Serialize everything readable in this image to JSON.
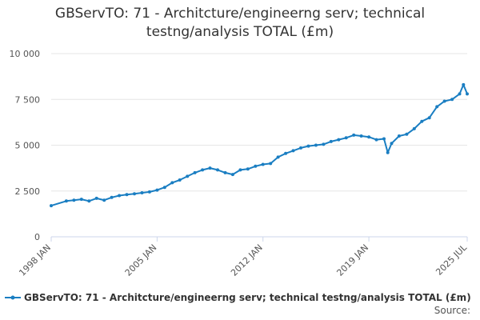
{
  "chart_data": {
    "type": "line",
    "title_line1": "GBServTO: 71 - Architcture/engineerng serv; technical",
    "title_line2": "testng/analysis TOTAL (£m)",
    "xlabel": "",
    "ylabel": "",
    "x_range": [
      "1998-01",
      "2025-07"
    ],
    "ylim": [
      0,
      10000
    ],
    "y_ticks": [
      0,
      2500,
      5000,
      7500,
      10000
    ],
    "y_tick_labels": [
      "0",
      "2 500",
      "5 000",
      "7 500",
      "10 000"
    ],
    "x_ticks": [
      "1998-01",
      "2005-01",
      "2012-01",
      "2019-01",
      "2025-07"
    ],
    "x_tick_labels": [
      "1998 JAN",
      "2005 JAN",
      "2012 JAN",
      "2019 JAN",
      "2025 JUL"
    ],
    "grid": "horizontal",
    "legend_position": "bottom",
    "color": "#1a7ec2",
    "series": [
      {
        "name": "GBServTO: 71 - Architcture/engineerng serv; technical testng/analysis TOTAL (£m)",
        "x": [
          "1998-01",
          "1999-01",
          "1999-07",
          "2000-01",
          "2000-07",
          "2001-01",
          "2001-07",
          "2002-01",
          "2002-07",
          "2003-01",
          "2003-07",
          "2004-01",
          "2004-07",
          "2005-01",
          "2005-07",
          "2006-01",
          "2006-07",
          "2007-01",
          "2007-07",
          "2008-01",
          "2008-07",
          "2009-01",
          "2009-07",
          "2010-01",
          "2010-07",
          "2011-01",
          "2011-07",
          "2012-01",
          "2012-07",
          "2013-01",
          "2013-07",
          "2014-01",
          "2014-07",
          "2015-01",
          "2015-07",
          "2016-01",
          "2016-07",
          "2017-01",
          "2017-07",
          "2018-01",
          "2018-07",
          "2019-01",
          "2019-07",
          "2020-01",
          "2020-04",
          "2020-07",
          "2021-01",
          "2021-07",
          "2022-01",
          "2022-07",
          "2023-01",
          "2023-07",
          "2024-01",
          "2024-07",
          "2025-01",
          "2025-04",
          "2025-07"
        ],
        "values": [
          1700,
          1950,
          2000,
          2050,
          1950,
          2100,
          2000,
          2150,
          2250,
          2300,
          2350,
          2400,
          2450,
          2550,
          2700,
          2950,
          3100,
          3300,
          3500,
          3650,
          3750,
          3650,
          3500,
          3400,
          3650,
          3700,
          3850,
          3950,
          4000,
          4350,
          4550,
          4700,
          4850,
          4950,
          5000,
          5050,
          5200,
          5300,
          5400,
          5550,
          5500,
          5450,
          5300,
          5350,
          4600,
          5100,
          5500,
          5600,
          5900,
          6300,
          6500,
          7100,
          7400,
          7500,
          7800,
          8300,
          7800
        ]
      }
    ]
  },
  "legend": {
    "label": "GBServTO: 71 - Architcture/engineerng serv; technical testng/analysis TOTAL (£m)"
  },
  "source": {
    "label": "Source:"
  }
}
